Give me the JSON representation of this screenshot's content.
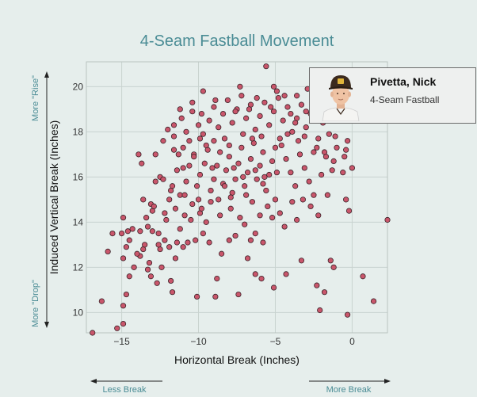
{
  "chart_data": {
    "type": "scatter",
    "title": "4-Seam Fastball Movement",
    "xlabel": "Horizontal Break (Inches)",
    "ylabel": "Induced Vertical Break (Inches)",
    "xlim": [
      -17.3,
      2.3
    ],
    "ylim": [
      9.1,
      21.1
    ],
    "x_ticks": [
      -15,
      -10,
      -5,
      0
    ],
    "y_ticks": [
      10,
      12,
      14,
      16,
      18,
      20
    ],
    "grid": true,
    "legend": "none",
    "hints": {
      "more_rise": "More \"Rise\"",
      "more_drop": "More \"Drop\"",
      "less_break": "Less Break",
      "more_break": "More Break"
    },
    "point_color": "#c9566b",
    "points": [
      [
        -16.9,
        9.1
      ],
      [
        -15.3,
        9.3
      ],
      [
        -14.9,
        9.5
      ],
      [
        -16.3,
        10.5
      ],
      [
        -14.9,
        10.3
      ],
      [
        -14.7,
        10.8
      ],
      [
        -15.9,
        12.7
      ],
      [
        -14.9,
        12.4
      ],
      [
        -14.5,
        11.6
      ],
      [
        -14.7,
        12.9
      ],
      [
        -14.5,
        13.2
      ],
      [
        -14.6,
        13.6
      ],
      [
        -15.0,
        13.5
      ],
      [
        -14.9,
        14.2
      ],
      [
        -14.2,
        12.0
      ],
      [
        -13.8,
        12.5
      ],
      [
        -13.6,
        12.8
      ],
      [
        -13.5,
        13.0
      ],
      [
        -13.2,
        12.2
      ],
      [
        -13.1,
        11.6
      ],
      [
        -13.3,
        13.8
      ],
      [
        -13.0,
        14.5
      ],
      [
        -12.6,
        13.5
      ],
      [
        -12.5,
        12.8
      ],
      [
        -12.2,
        13.2
      ],
      [
        -12.4,
        12.0
      ],
      [
        -11.8,
        11.4
      ],
      [
        -11.9,
        12.9
      ],
      [
        -11.5,
        12.4
      ],
      [
        -11.4,
        13.1
      ],
      [
        -11.2,
        13.7
      ],
      [
        -11.0,
        12.9
      ],
      [
        -10.7,
        13.1
      ],
      [
        -10.9,
        14.3
      ],
      [
        -10.4,
        14.8
      ],
      [
        -10.2,
        13.2
      ],
      [
        -9.9,
        14.4
      ],
      [
        -9.7,
        13.5
      ],
      [
        -9.5,
        14.0
      ],
      [
        -9.3,
        13.1
      ],
      [
        -10.1,
        10.7
      ],
      [
        -8.9,
        10.7
      ],
      [
        -8.5,
        12.6
      ],
      [
        -8.0,
        13.2
      ],
      [
        -7.6,
        13.4
      ],
      [
        -7.0,
        13.9
      ],
      [
        -6.3,
        13.5
      ],
      [
        -6.8,
        12.4
      ],
      [
        -6.6,
        13.2
      ],
      [
        -5.8,
        13.1
      ],
      [
        -13.6,
        15.0
      ],
      [
        -13.1,
        14.8
      ],
      [
        -12.8,
        15.8
      ],
      [
        -12.5,
        16.0
      ],
      [
        -12.1,
        14.1
      ],
      [
        -11.9,
        15.0
      ],
      [
        -11.7,
        15.6
      ],
      [
        -11.4,
        16.3
      ],
      [
        -11.2,
        15.2
      ],
      [
        -11.6,
        17.2
      ],
      [
        -11.3,
        17.0
      ],
      [
        -11.0,
        16.4
      ],
      [
        -10.8,
        15.8
      ],
      [
        -10.6,
        16.5
      ],
      [
        -10.3,
        17.0
      ],
      [
        -10.1,
        15.6
      ],
      [
        -9.9,
        16.1
      ],
      [
        -9.6,
        16.6
      ],
      [
        -9.4,
        17.2
      ],
      [
        -9.2,
        15.4
      ],
      [
        -9.0,
        15.9
      ],
      [
        -8.8,
        16.5
      ],
      [
        -8.6,
        17.1
      ],
      [
        -8.4,
        15.7
      ],
      [
        -8.2,
        16.3
      ],
      [
        -8.0,
        16.9
      ],
      [
        -7.8,
        15.3
      ],
      [
        -7.6,
        15.9
      ],
      [
        -7.4,
        16.6
      ],
      [
        -7.2,
        17.3
      ],
      [
        -7.0,
        15.6
      ],
      [
        -6.8,
        16.2
      ],
      [
        -6.6,
        16.8
      ],
      [
        -6.4,
        17.5
      ],
      [
        -6.2,
        15.9
      ],
      [
        -6.0,
        16.5
      ],
      [
        -5.8,
        17.1
      ],
      [
        -5.6,
        15.4
      ],
      [
        -5.4,
        16.1
      ],
      [
        -5.2,
        16.7
      ],
      [
        -12.0,
        18.1
      ],
      [
        -11.6,
        17.8
      ],
      [
        -11.1,
        18.6
      ],
      [
        -10.8,
        18.0
      ],
      [
        -10.4,
        18.9
      ],
      [
        -10.0,
        18.3
      ],
      [
        -9.7,
        17.9
      ],
      [
        -9.3,
        18.5
      ],
      [
        -9.0,
        19.1
      ],
      [
        -8.7,
        18.2
      ],
      [
        -8.4,
        18.8
      ],
      [
        -8.1,
        19.4
      ],
      [
        -7.8,
        18.4
      ],
      [
        -7.5,
        19.0
      ],
      [
        -7.2,
        19.6
      ],
      [
        -6.9,
        18.6
      ],
      [
        -6.6,
        19.2
      ],
      [
        -6.3,
        18.1
      ],
      [
        -6.0,
        18.7
      ],
      [
        -5.7,
        19.3
      ],
      [
        -5.4,
        18.3
      ],
      [
        -5.1,
        18.9
      ],
      [
        -4.8,
        19.5
      ],
      [
        -4.5,
        18.5
      ],
      [
        -4.2,
        19.1
      ],
      [
        -3.9,
        18.0
      ],
      [
        -3.6,
        18.6
      ],
      [
        -3.3,
        19.2
      ],
      [
        -3.0,
        18.2
      ],
      [
        -2.7,
        18.8
      ],
      [
        -9.7,
        19.8
      ],
      [
        -5.6,
        20.9
      ],
      [
        -4.9,
        19.8
      ],
      [
        -3.6,
        19.6
      ],
      [
        -2.9,
        19.9
      ],
      [
        -2.4,
        19.2
      ],
      [
        -1.9,
        18.4
      ],
      [
        -1.5,
        17.9
      ],
      [
        -1.0,
        17.3
      ],
      [
        -0.5,
        16.9
      ],
      [
        -0.3,
        17.6
      ],
      [
        -0.6,
        16.2
      ],
      [
        -1.2,
        16.7
      ],
      [
        -1.8,
        17.1
      ],
      [
        -2.2,
        17.7
      ],
      [
        -4.6,
        17.4
      ],
      [
        -4.3,
        16.8
      ],
      [
        -4.0,
        16.2
      ],
      [
        -3.7,
        15.6
      ],
      [
        -3.4,
        17.0
      ],
      [
        -3.1,
        16.4
      ],
      [
        -2.8,
        15.8
      ],
      [
        -2.5,
        15.2
      ],
      [
        -5.0,
        15.0
      ],
      [
        -4.7,
        14.4
      ],
      [
        -4.4,
        13.8
      ],
      [
        -3.9,
        14.9
      ],
      [
        -3.6,
        14.1
      ],
      [
        -3.2,
        15.0
      ],
      [
        -2.7,
        14.7
      ],
      [
        -2.2,
        14.3
      ],
      [
        -1.6,
        15.2
      ],
      [
        -0.4,
        15.0
      ],
      [
        -0.2,
        14.5
      ],
      [
        0.0,
        16.4
      ],
      [
        -5.2,
        14.2
      ],
      [
        -5.5,
        14.7
      ],
      [
        -6.0,
        14.3
      ],
      [
        -6.5,
        14.9
      ],
      [
        -7.3,
        14.2
      ],
      [
        -7.9,
        14.6
      ],
      [
        -8.6,
        14.3
      ],
      [
        -9.2,
        14.9
      ],
      [
        -9.8,
        14.6
      ],
      [
        -10.5,
        14.1
      ],
      [
        -11.5,
        14.6
      ],
      [
        -12.2,
        14.4
      ],
      [
        -12.9,
        14.7
      ],
      [
        -13.4,
        14.2
      ],
      [
        -13.8,
        13.6
      ],
      [
        -14.0,
        12.6
      ],
      [
        -13.3,
        11.9
      ],
      [
        -12.7,
        11.3
      ],
      [
        -11.7,
        10.9
      ],
      [
        -5.9,
        11.5
      ],
      [
        -5.1,
        11.1
      ],
      [
        -4.3,
        11.7
      ],
      [
        -2.3,
        11.2
      ],
      [
        -1.8,
        10.9
      ],
      [
        -1.4,
        12.3
      ],
      [
        -1.2,
        12.0
      ],
      [
        0.7,
        11.6
      ],
      [
        1.4,
        10.5
      ],
      [
        2.3,
        14.1
      ],
      [
        -0.3,
        9.9
      ],
      [
        -2.1,
        10.1
      ],
      [
        -3.3,
        12.3
      ],
      [
        -6.3,
        11.7
      ],
      [
        -7.4,
        10.8
      ],
      [
        -8.8,
        11.5
      ],
      [
        -12.8,
        17.0
      ],
      [
        -13.7,
        16.6
      ],
      [
        -13.9,
        17.0
      ],
      [
        -10.6,
        17.6
      ],
      [
        -9.5,
        17.4
      ],
      [
        -8.3,
        17.7
      ],
      [
        -7.1,
        17.9
      ],
      [
        -5.9,
        17.8
      ],
      [
        -4.7,
        17.7
      ],
      [
        -3.5,
        17.6
      ],
      [
        -2.3,
        17.3
      ],
      [
        -1.1,
        17.8
      ],
      [
        -0.4,
        17.2
      ],
      [
        -1.3,
        16.3
      ],
      [
        -2.0,
        16.1
      ],
      [
        -8.7,
        15.0
      ],
      [
        -7.9,
        15.1
      ],
      [
        -6.9,
        15.2
      ],
      [
        -5.8,
        15.7
      ],
      [
        -4.9,
        16.2
      ],
      [
        -9.9,
        17.7
      ],
      [
        -10.3,
        16.9
      ],
      [
        -11.0,
        17.3
      ],
      [
        -7.6,
        18.9
      ],
      [
        -6.7,
        19.0
      ],
      [
        -5.3,
        19.1
      ],
      [
        -4.0,
        18.8
      ],
      [
        -3.1,
        17.8
      ],
      [
        -2.5,
        17.1
      ],
      [
        -1.7,
        16.9
      ],
      [
        -5.7,
        16.0
      ],
      [
        -6.3,
        16.3
      ],
      [
        -7.1,
        16.0
      ],
      [
        -7.7,
        16.4
      ],
      [
        -8.3,
        15.6
      ],
      [
        -9.1,
        16.4
      ],
      [
        -10.0,
        15.0
      ],
      [
        -10.9,
        15.2
      ],
      [
        -11.8,
        15.4
      ],
      [
        -12.3,
        15.9
      ],
      [
        -12.6,
        13.0
      ],
      [
        -13.0,
        13.6
      ],
      [
        -14.3,
        13.7
      ],
      [
        -15.6,
        13.5
      ],
      [
        -8.0,
        17.4
      ],
      [
        -6.5,
        17.7
      ],
      [
        -5.0,
        17.3
      ],
      [
        -4.2,
        17.9
      ],
      [
        -3.7,
        18.4
      ],
      [
        -3.0,
        18.9
      ],
      [
        -2.6,
        19.5
      ],
      [
        -1.9,
        19.1
      ],
      [
        -1.0,
        18.6
      ],
      [
        -0.6,
        19.4
      ],
      [
        -7.3,
        20.0
      ],
      [
        -6.2,
        19.5
      ],
      [
        -5.1,
        20.0
      ],
      [
        -4.4,
        19.6
      ],
      [
        -8.9,
        19.4
      ],
      [
        -9.8,
        18.8
      ],
      [
        -11.2,
        19.0
      ],
      [
        -11.6,
        18.3
      ],
      [
        -12.3,
        17.6
      ],
      [
        -10.4,
        19.3
      ],
      [
        -9.0,
        17.6
      ]
    ]
  },
  "player": {
    "name": "Pivetta, Nick",
    "pitch": "4-Seam Fastball"
  }
}
